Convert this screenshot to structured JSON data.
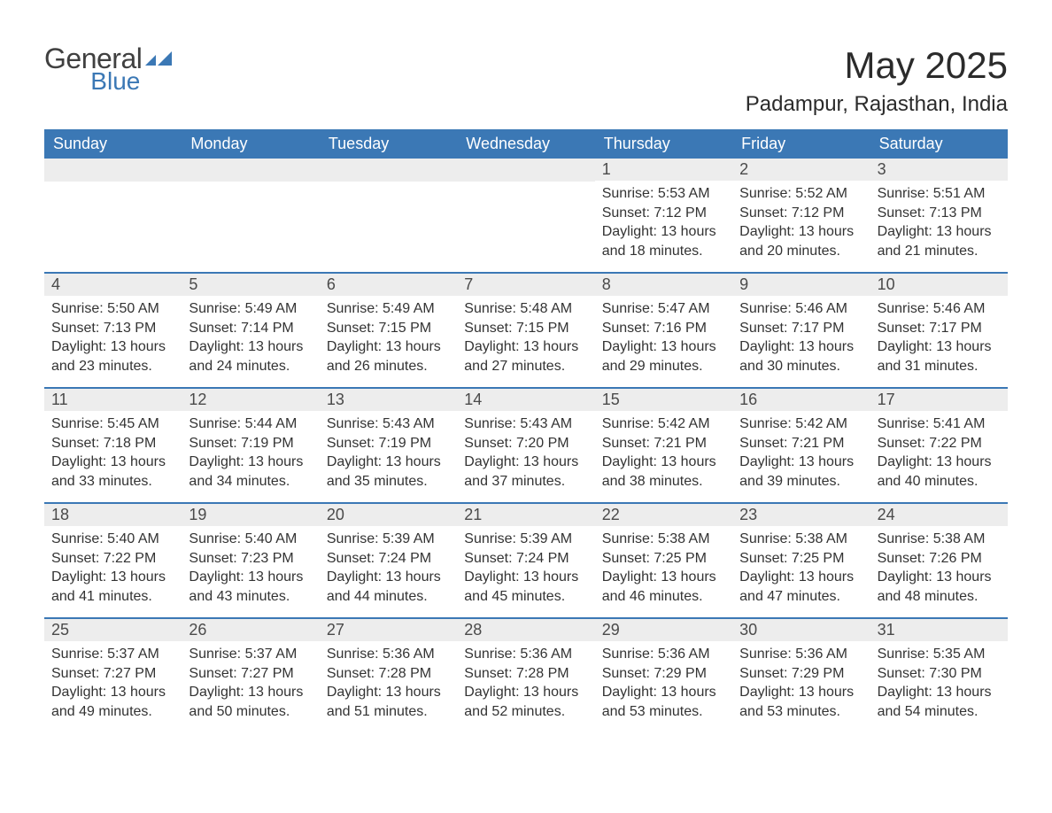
{
  "logo": {
    "general": "General",
    "blue": "Blue",
    "flag_color": "#3b78b5"
  },
  "title": "May 2025",
  "location": "Padampur, Rajasthan, India",
  "colors": {
    "header_bg": "#3b78b5",
    "header_text": "#ffffff",
    "daynum_bg": "#ededed",
    "text": "#333333",
    "week_border": "#3b78b5",
    "page_bg": "#ffffff"
  },
  "days_of_week": [
    "Sunday",
    "Monday",
    "Tuesday",
    "Wednesday",
    "Thursday",
    "Friday",
    "Saturday"
  ],
  "lead_blank": 4,
  "days": [
    {
      "n": 1,
      "sunrise": "5:53 AM",
      "sunset": "7:12 PM",
      "dl": "13 hours and 18 minutes."
    },
    {
      "n": 2,
      "sunrise": "5:52 AM",
      "sunset": "7:12 PM",
      "dl": "13 hours and 20 minutes."
    },
    {
      "n": 3,
      "sunrise": "5:51 AM",
      "sunset": "7:13 PM",
      "dl": "13 hours and 21 minutes."
    },
    {
      "n": 4,
      "sunrise": "5:50 AM",
      "sunset": "7:13 PM",
      "dl": "13 hours and 23 minutes."
    },
    {
      "n": 5,
      "sunrise": "5:49 AM",
      "sunset": "7:14 PM",
      "dl": "13 hours and 24 minutes."
    },
    {
      "n": 6,
      "sunrise": "5:49 AM",
      "sunset": "7:15 PM",
      "dl": "13 hours and 26 minutes."
    },
    {
      "n": 7,
      "sunrise": "5:48 AM",
      "sunset": "7:15 PM",
      "dl": "13 hours and 27 minutes."
    },
    {
      "n": 8,
      "sunrise": "5:47 AM",
      "sunset": "7:16 PM",
      "dl": "13 hours and 29 minutes."
    },
    {
      "n": 9,
      "sunrise": "5:46 AM",
      "sunset": "7:17 PM",
      "dl": "13 hours and 30 minutes."
    },
    {
      "n": 10,
      "sunrise": "5:46 AM",
      "sunset": "7:17 PM",
      "dl": "13 hours and 31 minutes."
    },
    {
      "n": 11,
      "sunrise": "5:45 AM",
      "sunset": "7:18 PM",
      "dl": "13 hours and 33 minutes."
    },
    {
      "n": 12,
      "sunrise": "5:44 AM",
      "sunset": "7:19 PM",
      "dl": "13 hours and 34 minutes."
    },
    {
      "n": 13,
      "sunrise": "5:43 AM",
      "sunset": "7:19 PM",
      "dl": "13 hours and 35 minutes."
    },
    {
      "n": 14,
      "sunrise": "5:43 AM",
      "sunset": "7:20 PM",
      "dl": "13 hours and 37 minutes."
    },
    {
      "n": 15,
      "sunrise": "5:42 AM",
      "sunset": "7:21 PM",
      "dl": "13 hours and 38 minutes."
    },
    {
      "n": 16,
      "sunrise": "5:42 AM",
      "sunset": "7:21 PM",
      "dl": "13 hours and 39 minutes."
    },
    {
      "n": 17,
      "sunrise": "5:41 AM",
      "sunset": "7:22 PM",
      "dl": "13 hours and 40 minutes."
    },
    {
      "n": 18,
      "sunrise": "5:40 AM",
      "sunset": "7:22 PM",
      "dl": "13 hours and 41 minutes."
    },
    {
      "n": 19,
      "sunrise": "5:40 AM",
      "sunset": "7:23 PM",
      "dl": "13 hours and 43 minutes."
    },
    {
      "n": 20,
      "sunrise": "5:39 AM",
      "sunset": "7:24 PM",
      "dl": "13 hours and 44 minutes."
    },
    {
      "n": 21,
      "sunrise": "5:39 AM",
      "sunset": "7:24 PM",
      "dl": "13 hours and 45 minutes."
    },
    {
      "n": 22,
      "sunrise": "5:38 AM",
      "sunset": "7:25 PM",
      "dl": "13 hours and 46 minutes."
    },
    {
      "n": 23,
      "sunrise": "5:38 AM",
      "sunset": "7:25 PM",
      "dl": "13 hours and 47 minutes."
    },
    {
      "n": 24,
      "sunrise": "5:38 AM",
      "sunset": "7:26 PM",
      "dl": "13 hours and 48 minutes."
    },
    {
      "n": 25,
      "sunrise": "5:37 AM",
      "sunset": "7:27 PM",
      "dl": "13 hours and 49 minutes."
    },
    {
      "n": 26,
      "sunrise": "5:37 AM",
      "sunset": "7:27 PM",
      "dl": "13 hours and 50 minutes."
    },
    {
      "n": 27,
      "sunrise": "5:36 AM",
      "sunset": "7:28 PM",
      "dl": "13 hours and 51 minutes."
    },
    {
      "n": 28,
      "sunrise": "5:36 AM",
      "sunset": "7:28 PM",
      "dl": "13 hours and 52 minutes."
    },
    {
      "n": 29,
      "sunrise": "5:36 AM",
      "sunset": "7:29 PM",
      "dl": "13 hours and 53 minutes."
    },
    {
      "n": 30,
      "sunrise": "5:36 AM",
      "sunset": "7:29 PM",
      "dl": "13 hours and 53 minutes."
    },
    {
      "n": 31,
      "sunrise": "5:35 AM",
      "sunset": "7:30 PM",
      "dl": "13 hours and 54 minutes."
    }
  ],
  "labels": {
    "sunrise": "Sunrise:",
    "sunset": "Sunset:",
    "daylight": "Daylight:"
  }
}
